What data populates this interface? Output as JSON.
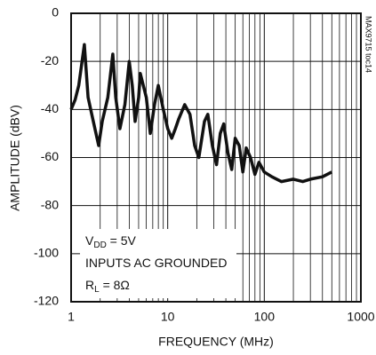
{
  "chart_data": {
    "type": "line",
    "x_label": "FREQUENCY (MHz)",
    "y_label": "AMPLITUDE (dBV)",
    "side_label": "MAX9715 toc14",
    "annotations": [
      {
        "parts": [
          "V",
          "DD",
          " = 5V"
        ]
      },
      {
        "parts": [
          "INPUTS AC GROUNDED"
        ]
      },
      {
        "parts": [
          "R",
          "L",
          " = 8Ω"
        ]
      }
    ],
    "x_scale": "log",
    "xlim": [
      1,
      1000
    ],
    "ylim": [
      -120,
      0
    ],
    "xticks": [
      1,
      10,
      100,
      1000
    ],
    "xminorticks": [
      2,
      3,
      4,
      5,
      6,
      7,
      8,
      9,
      20,
      30,
      40,
      50,
      60,
      70,
      80,
      90,
      200,
      300,
      400,
      500,
      600,
      700,
      800,
      900
    ],
    "yticks": [
      -120,
      -100,
      -80,
      -60,
      -40,
      -20,
      0
    ],
    "grid": true,
    "series": [
      {
        "color": "#111111",
        "x": [
          1.0,
          1.1,
          1.2,
          1.37,
          1.5,
          1.7,
          1.93,
          2.1,
          2.4,
          2.7,
          2.9,
          3.2,
          3.6,
          4.0,
          4.3,
          4.6,
          5.0,
          5.2,
          6.0,
          6.6,
          7.3,
          8.0,
          9.0,
          10,
          11,
          12,
          13,
          15,
          17,
          19,
          21,
          24,
          26,
          29,
          32,
          35,
          38,
          42,
          46,
          50,
          55,
          60,
          65,
          72,
          80,
          88,
          100,
          120,
          150,
          200,
          250,
          300,
          400,
          500
        ],
        "values": [
          -40,
          -36,
          -30,
          -13,
          -35,
          -45,
          -55,
          -45,
          -35,
          -17,
          -35,
          -48,
          -38,
          -20,
          -30,
          -45,
          -35,
          -25,
          -35,
          -50,
          -38,
          -30,
          -40,
          -48,
          -52,
          -48,
          -44,
          -38,
          -42,
          -55,
          -60,
          -45,
          -42,
          -55,
          -63,
          -50,
          -46,
          -58,
          -65,
          -52,
          -55,
          -66,
          -56,
          -60,
          -67,
          -62,
          -66,
          -68,
          -70,
          -69,
          -70,
          -69,
          -68,
          -66
        ]
      }
    ]
  }
}
